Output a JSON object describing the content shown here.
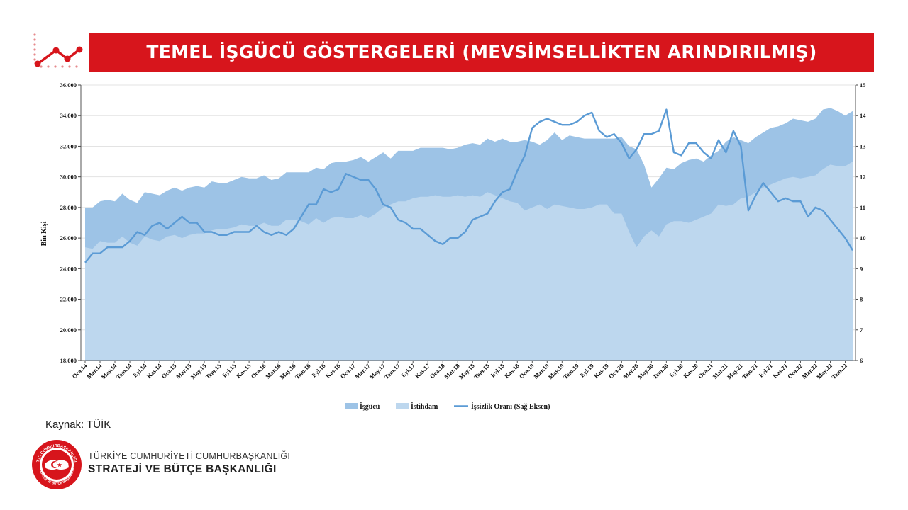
{
  "header": {
    "title": "TEMEL İŞGÜCÜ GÖSTERGELERİ (MEVSİMSELLİKTEN ARINDIRILMIŞ)"
  },
  "footer": {
    "source": "Kaynak: TÜİK",
    "org_line1": "TÜRKİYE CUMHURİYETİ CUMHURBAŞKANLIĞI",
    "org_line2": "STRATEJİ VE BÜTÇE BAŞKANLIĞI",
    "emblem_text": "T.C. CUMHURBAŞKANLIĞI STRATEJİ VE BÜTÇE BAŞKANLIĞI"
  },
  "colors": {
    "banner": "#d7151c",
    "labor_force": "#9dc3e6",
    "employment": "#bdd7ee",
    "unemployment_rate": "#5b9bd5"
  },
  "chart_data": {
    "type": "area",
    "title": "",
    "xlabel": "",
    "ylabel": "Bin Kişi",
    "ylim": [
      18000,
      36000
    ],
    "y2lim": [
      6,
      15
    ],
    "left_ticks": [
      "18.000",
      "20.000",
      "22.000",
      "24.000",
      "26.000",
      "28.000",
      "30.000",
      "32.000",
      "34.000",
      "36.000"
    ],
    "right_ticks": [
      "6",
      "7",
      "8",
      "9",
      "10",
      "11",
      "12",
      "13",
      "14",
      "15"
    ],
    "x_tick_labels": [
      "Oca.14",
      "Mar.14",
      "May.14",
      "Tem.14",
      "Eyl.14",
      "Kas.14",
      "Oca.15",
      "Mar.15",
      "May.15",
      "Tem.15",
      "Eyl.15",
      "Kas.15",
      "Oca.16",
      "Mar.16",
      "May.16",
      "Tem.16",
      "Eyl.16",
      "Kas.16",
      "Oca.17",
      "Mar.17",
      "May.17",
      "Tem.17",
      "Eyl.17",
      "Kas.17",
      "Oca.18",
      "Mar.18",
      "May.18",
      "Tem.18",
      "Eyl.18",
      "Kas.18",
      "Oca.19",
      "Mar.19",
      "May.19",
      "Tem.19",
      "Eyl.19",
      "Kas.19",
      "Oca.20",
      "Mar.20",
      "May.20",
      "Tem.20",
      "Eyl.20",
      "Kas.20",
      "Oca.21",
      "Mar.21",
      "May.21",
      "Tem.21",
      "Eyl.21",
      "Kas.21",
      "Oca.22",
      "Mar.22",
      "May.22",
      "Tem.22"
    ],
    "legend_position": "bottom",
    "series": [
      {
        "name": "İşgücü",
        "axis": "left",
        "type": "area",
        "values": [
          28000,
          28000,
          28400,
          28500,
          28400,
          28900,
          28500,
          28300,
          29000,
          28900,
          28800,
          29100,
          29300,
          29100,
          29300,
          29400,
          29300,
          29700,
          29600,
          29600,
          29800,
          30000,
          29900,
          29900,
          30100,
          29800,
          29900,
          30300,
          30300,
          30300,
          30300,
          30600,
          30500,
          30900,
          31000,
          31000,
          31100,
          31300,
          31000,
          31300,
          31600,
          31200,
          31700,
          31700,
          31700,
          31900,
          31900,
          31900,
          31900,
          31800,
          31900,
          32100,
          32200,
          32100,
          32500,
          32300,
          32500,
          32300,
          32300,
          32400,
          32300,
          32100,
          32400,
          32900,
          32400,
          32700,
          32600,
          32500,
          32500,
          32500,
          32500,
          32500,
          32600,
          32000,
          31800,
          30800,
          29300,
          29900,
          30600,
          30500,
          30900,
          31100,
          31200,
          31000,
          31400,
          31700,
          32300,
          32600,
          32400,
          32200,
          32600,
          32900,
          33200,
          33300,
          33500,
          33800,
          33700,
          33600,
          33800,
          34400,
          34500,
          34300,
          34000,
          34300
        ]
      },
      {
        "name": "İstihdam",
        "axis": "left",
        "type": "area",
        "values": [
          25400,
          25300,
          25800,
          25700,
          25700,
          26100,
          25700,
          25500,
          26100,
          25900,
          25800,
          26100,
          26200,
          26000,
          26200,
          26300,
          26300,
          26500,
          26600,
          26600,
          26700,
          26900,
          26800,
          26800,
          27000,
          26800,
          26800,
          27200,
          27200,
          27100,
          26900,
          27300,
          27000,
          27300,
          27400,
          27300,
          27300,
          27500,
          27300,
          27600,
          28000,
          28200,
          28400,
          28400,
          28600,
          28700,
          28700,
          28800,
          28700,
          28700,
          28800,
          28700,
          28800,
          28700,
          29000,
          28800,
          28600,
          28400,
          28300,
          27800,
          28000,
          28200,
          27900,
          28200,
          28100,
          28000,
          27900,
          27900,
          28000,
          28200,
          28200,
          27600,
          27600,
          26400,
          25400,
          26100,
          26500,
          26100,
          26900,
          27100,
          27100,
          27000,
          27200,
          27400,
          27600,
          28200,
          28100,
          28200,
          28600,
          28700,
          29000,
          29300,
          29500,
          29700,
          29900,
          30000,
          29900,
          30000,
          30100,
          30500,
          30800,
          30700,
          30700,
          31000
        ]
      },
      {
        "name": "İşsizlik Oranı (Sağ Eksen)",
        "axis": "right",
        "type": "line",
        "values": [
          9.2,
          9.5,
          9.5,
          9.7,
          9.7,
          9.7,
          9.9,
          10.2,
          10.1,
          10.4,
          10.5,
          10.3,
          10.5,
          10.7,
          10.5,
          10.5,
          10.2,
          10.2,
          10.1,
          10.1,
          10.2,
          10.2,
          10.2,
          10.4,
          10.2,
          10.1,
          10.2,
          10.1,
          10.3,
          10.7,
          11.1,
          11.1,
          11.6,
          11.5,
          11.6,
          12.1,
          12.0,
          11.9,
          11.9,
          11.6,
          11.1,
          11.0,
          10.6,
          10.5,
          10.3,
          10.3,
          10.1,
          9.9,
          9.8,
          10.0,
          10.0,
          10.2,
          10.6,
          10.7,
          10.8,
          11.2,
          11.5,
          11.6,
          12.2,
          12.7,
          13.6,
          13.8,
          13.9,
          13.8,
          13.7,
          13.7,
          13.8,
          14.0,
          14.1,
          13.5,
          13.3,
          13.4,
          13.1,
          12.6,
          12.9,
          13.4,
          13.4,
          13.5,
          14.2,
          12.8,
          12.7,
          13.1,
          13.1,
          12.8,
          12.6,
          13.2,
          12.8,
          13.5,
          13.0,
          10.9,
          11.4,
          11.8,
          11.5,
          11.2,
          11.3,
          11.2,
          11.2,
          10.7,
          11.0,
          10.9,
          10.6,
          10.3,
          10.0,
          9.6
        ]
      }
    ]
  }
}
